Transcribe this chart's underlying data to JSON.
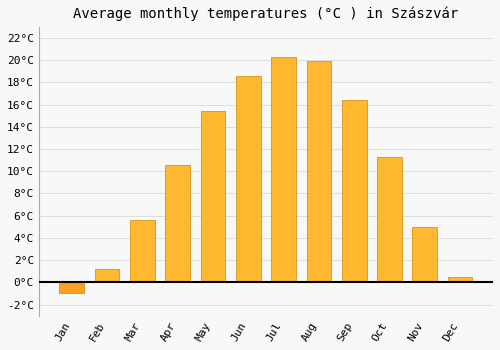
{
  "title": "Average monthly temperatures (°C ) in Szászvár",
  "months": [
    "Jan",
    "Feb",
    "Mar",
    "Apr",
    "May",
    "Jun",
    "Jul",
    "Aug",
    "Sep",
    "Oct",
    "Nov",
    "Dec"
  ],
  "values": [
    -1.0,
    1.2,
    5.6,
    10.6,
    15.4,
    18.6,
    20.3,
    19.9,
    16.4,
    11.3,
    5.0,
    0.5
  ],
  "bar_color_positive": "#FFB830",
  "bar_color_negative": "#FFA020",
  "bar_edge_color": "#CC8800",
  "background_color": "#f8f8f8",
  "grid_color": "#dddddd",
  "ylim": [
    -3,
    23
  ],
  "yticks": [
    -2,
    0,
    2,
    4,
    6,
    8,
    10,
    12,
    14,
    16,
    18,
    20,
    22
  ],
  "title_fontsize": 10,
  "tick_fontsize": 8,
  "bar_width": 0.7
}
